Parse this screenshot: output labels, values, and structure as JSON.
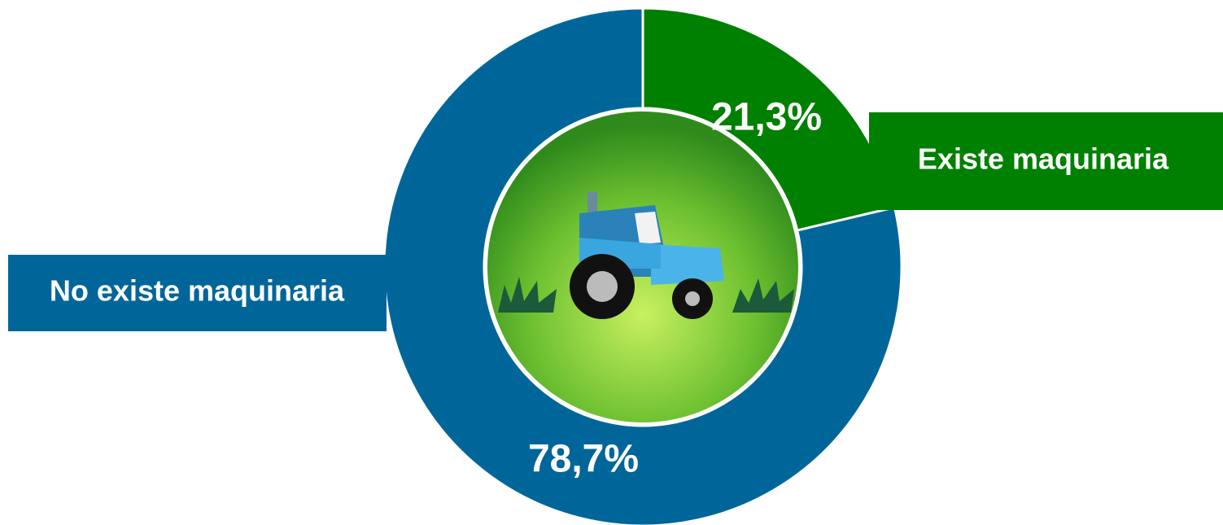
{
  "chart_data": {
    "type": "donut",
    "categories": [
      "Existe maquinaria",
      "No existe maquinaria"
    ],
    "values": [
      21.3,
      78.7
    ],
    "value_labels": [
      "21,3%",
      "78,7%"
    ],
    "colors": [
      "#008000",
      "#006699"
    ]
  }
}
